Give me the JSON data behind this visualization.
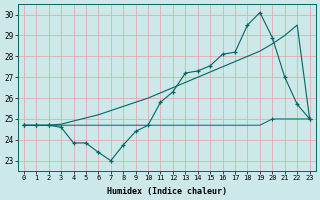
{
  "x": [
    0,
    1,
    2,
    3,
    4,
    5,
    6,
    7,
    8,
    9,
    10,
    11,
    12,
    13,
    14,
    15,
    16,
    17,
    18,
    19,
    20,
    21,
    22,
    23
  ],
  "line_wavy": [
    24.7,
    24.7,
    24.7,
    24.6,
    23.85,
    23.85,
    23.4,
    23.0,
    23.75,
    24.4,
    24.7,
    25.8,
    26.3,
    27.2,
    27.3,
    27.55,
    28.1,
    28.2,
    29.5,
    30.1,
    28.9,
    27.0,
    25.7,
    25.0
  ],
  "line_flat": [
    24.7,
    24.7,
    24.7,
    24.7,
    24.7,
    24.7,
    24.7,
    24.7,
    24.7,
    24.7,
    24.7,
    24.7,
    24.7,
    24.7,
    24.7,
    24.7,
    24.7,
    24.7,
    24.7,
    24.7,
    25.0,
    25.0,
    25.0,
    25.0
  ],
  "line_diag": [
    24.7,
    24.7,
    24.7,
    24.75,
    24.9,
    25.05,
    25.2,
    25.4,
    25.6,
    25.8,
    26.0,
    26.25,
    26.5,
    26.75,
    27.0,
    27.25,
    27.5,
    27.75,
    28.0,
    28.25,
    28.6,
    29.0,
    29.5,
    25.0
  ],
  "bg_color": "#cde8e8",
  "grid_color": "#e8a0a0",
  "line_color": "#006666",
  "xlabel": "Humidex (Indice chaleur)",
  "ylim": [
    22.5,
    30.5
  ],
  "xlim": [
    -0.5,
    23.5
  ],
  "yticks": [
    23,
    24,
    25,
    26,
    27,
    28,
    29,
    30
  ],
  "xticks": [
    0,
    1,
    2,
    3,
    4,
    5,
    6,
    7,
    8,
    9,
    10,
    11,
    12,
    13,
    14,
    15,
    16,
    17,
    18,
    19,
    20,
    21,
    22,
    23
  ],
  "figsize": [
    3.2,
    2.0
  ],
  "dpi": 100
}
